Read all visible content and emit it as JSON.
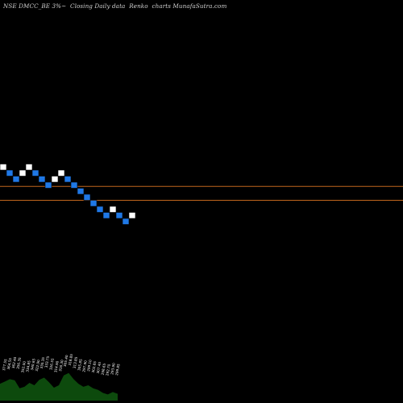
{
  "title": "NSE DMCC_BE 3%~  Closing Daily data  Renko  charts MunafaSutra.com",
  "colors": {
    "background": "#000000",
    "up_brick": "#ffffff",
    "down_brick": "#1f78e6",
    "brick_border": "#000000",
    "reference_line": "#c0661d",
    "volume_area": "#0d4a0d",
    "volume_label": "#ffffff"
  },
  "chart_data": {
    "type": "renko",
    "reversal_pct": 3,
    "brick_up": [
      true,
      false,
      false,
      true,
      true,
      false,
      false,
      false,
      true,
      true,
      false,
      false,
      false,
      false,
      false,
      false,
      false,
      true,
      false,
      false,
      true
    ],
    "reference_levels": [
      355.1,
      350.4
    ],
    "price_range": [
      290,
      410
    ],
    "volume_labels": [
      "377.55",
      "364.55",
      "362.40",
      "356.35",
      "352.00",
      "334.85",
      "340.65",
      "322.90",
      "330.35",
      "333.75",
      "326.55",
      "314.90",
      "316.30",
      "305.40",
      "318.85",
      "313.85",
      "305.85",
      "297.90",
      "299.10",
      "302.85",
      "307.45",
      "298.65",
      "292.70",
      "293.90",
      "299.85"
    ],
    "volume_values": [
      0.55,
      0.62,
      0.7,
      0.66,
      0.4,
      0.45,
      0.58,
      0.5,
      0.68,
      0.75,
      0.6,
      0.42,
      0.5,
      0.82,
      0.9,
      0.7,
      0.55,
      0.45,
      0.5,
      0.4,
      0.35,
      0.25,
      0.2,
      0.28,
      0.22
    ]
  }
}
